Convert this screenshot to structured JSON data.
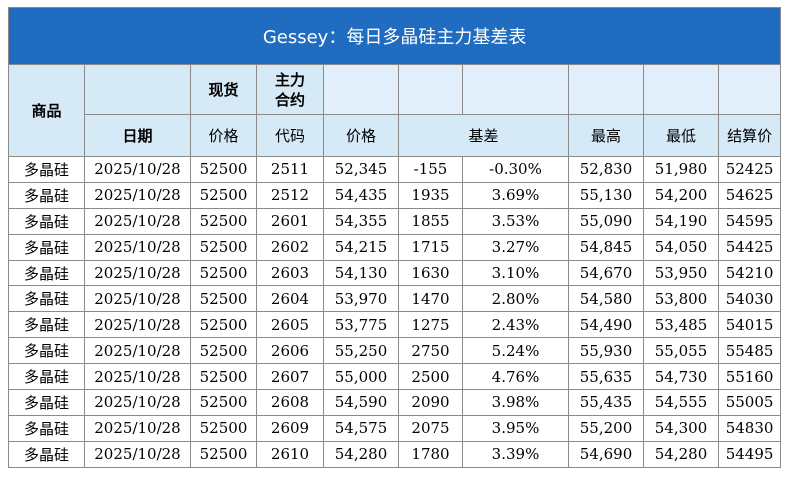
{
  "title": "Gessey：每日多晶硅主力基差表",
  "headers": {
    "product": "商品",
    "spot": "现货",
    "main_contract": "主力\n合约",
    "date": "日期",
    "spot_price": "价格",
    "code": "代码",
    "futures_price": "价格",
    "basis": "基差",
    "high": "最高",
    "low": "最低",
    "settlement": "结算价"
  },
  "colors": {
    "title_bg": "#1f6cc0",
    "header_bg": "#d6e9f7",
    "positive": "#e0231b",
    "negative": "#1a9a3a",
    "link_blue": "#3a55b0"
  },
  "rows": [
    {
      "product": "多晶硅",
      "date": "2025/10/28",
      "spot": "52500",
      "code": "2511",
      "price": "52,345",
      "basis": "-155",
      "basis_pct": "-0.30%",
      "high": "52,830",
      "low": "51,980",
      "settle": "52425"
    },
    {
      "product": "多晶硅",
      "date": "2025/10/28",
      "spot": "52500",
      "code": "2512",
      "price": "54,435",
      "basis": "1935",
      "basis_pct": "3.69%",
      "high": "55,130",
      "low": "54,200",
      "settle": "54625"
    },
    {
      "product": "多晶硅",
      "date": "2025/10/28",
      "spot": "52500",
      "code": "2601",
      "price": "54,355",
      "basis": "1855",
      "basis_pct": "3.53%",
      "high": "55,090",
      "low": "54,190",
      "settle": "54595"
    },
    {
      "product": "多晶硅",
      "date": "2025/10/28",
      "spot": "52500",
      "code": "2602",
      "price": "54,215",
      "basis": "1715",
      "basis_pct": "3.27%",
      "high": "54,845",
      "low": "54,050",
      "settle": "54425"
    },
    {
      "product": "多晶硅",
      "date": "2025/10/28",
      "spot": "52500",
      "code": "2603",
      "price": "54,130",
      "basis": "1630",
      "basis_pct": "3.10%",
      "high": "54,670",
      "low": "53,950",
      "settle": "54210"
    },
    {
      "product": "多晶硅",
      "date": "2025/10/28",
      "spot": "52500",
      "code": "2604",
      "price": "53,970",
      "basis": "1470",
      "basis_pct": "2.80%",
      "high": "54,580",
      "low": "53,800",
      "settle": "54030"
    },
    {
      "product": "多晶硅",
      "date": "2025/10/28",
      "spot": "52500",
      "code": "2605",
      "price": "53,775",
      "basis": "1275",
      "basis_pct": "2.43%",
      "high": "54,490",
      "low": "53,485",
      "settle": "54015"
    },
    {
      "product": "多晶硅",
      "date": "2025/10/28",
      "spot": "52500",
      "code": "2606",
      "price": "55,250",
      "basis": "2750",
      "basis_pct": "5.24%",
      "high": "55,930",
      "low": "55,055",
      "settle": "55485"
    },
    {
      "product": "多晶硅",
      "date": "2025/10/28",
      "spot": "52500",
      "code": "2607",
      "price": "55,000",
      "basis": "2500",
      "basis_pct": "4.76%",
      "high": "55,635",
      "low": "54,730",
      "settle": "55160"
    },
    {
      "product": "多晶硅",
      "date": "2025/10/28",
      "spot": "52500",
      "code": "2608",
      "price": "54,590",
      "basis": "2090",
      "basis_pct": "3.98%",
      "high": "55,435",
      "low": "54,555",
      "settle": "55005"
    },
    {
      "product": "多晶硅",
      "date": "2025/10/28",
      "spot": "52500",
      "code": "2609",
      "price": "54,575",
      "basis": "2075",
      "basis_pct": "3.95%",
      "high": "55,200",
      "low": "54,300",
      "settle": "54830"
    },
    {
      "product": "多晶硅",
      "date": "2025/10/28",
      "spot": "52500",
      "code": "2610",
      "price": "54,280",
      "basis": "1780",
      "basis_pct": "3.39%",
      "high": "54,690",
      "low": "54,280",
      "settle": "54495"
    }
  ]
}
